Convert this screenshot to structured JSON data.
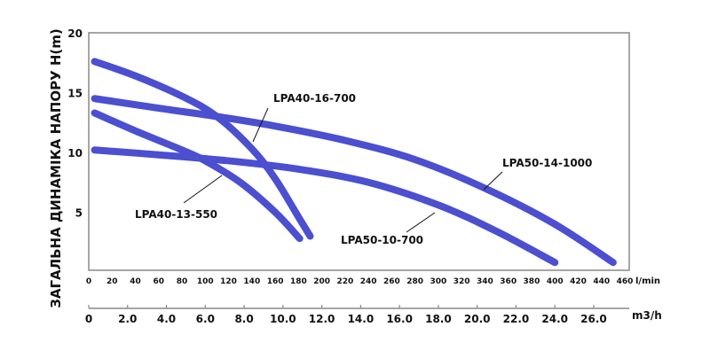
{
  "chart_data": {
    "type": "line",
    "ylabel": "ЗАГАЛЬНА ДИНАМІКА НАПОРУ H(m)",
    "xlabel": "l/min",
    "x2label": "m3/h",
    "xlim": [
      0,
      460
    ],
    "ylim": [
      0,
      20
    ],
    "x_ticks": [
      0,
      20,
      40,
      60,
      80,
      100,
      120,
      140,
      160,
      180,
      200,
      220,
      240,
      260,
      280,
      300,
      320,
      340,
      360,
      380,
      400,
      420,
      440,
      460
    ],
    "y_ticks": [
      5,
      10,
      15,
      20
    ],
    "x2_ticks": [
      "0",
      "2.0",
      "4.0",
      "6.0",
      "8.0",
      "10.0",
      "12.0",
      "14.0",
      "16.0",
      "18.0",
      "20.0",
      "22.0",
      "24.0",
      "26.0"
    ],
    "line_color": "#4b4fd0",
    "series": [
      {
        "name": "LPA40-16-700",
        "points": [
          [
            5,
            17.6
          ],
          [
            40,
            16.4
          ],
          [
            80,
            14.7
          ],
          [
            110,
            13
          ],
          [
            140,
            10.3
          ],
          [
            160,
            7.8
          ],
          [
            180,
            4.6
          ],
          [
            190,
            3.0
          ]
        ]
      },
      {
        "name": "LPA40-13-550",
        "points": [
          [
            5,
            13.3
          ],
          [
            40,
            11.8
          ],
          [
            80,
            10.2
          ],
          [
            100,
            9.3
          ],
          [
            130,
            7.5
          ],
          [
            160,
            5.0
          ],
          [
            181,
            2.8
          ]
        ]
      },
      {
        "name": "LPA50-14-1000",
        "points": [
          [
            5,
            14.5
          ],
          [
            60,
            13.7
          ],
          [
            110,
            13
          ],
          [
            160,
            12.2
          ],
          [
            220,
            11
          ],
          [
            280,
            9.4
          ],
          [
            340,
            7.0
          ],
          [
            400,
            4.0
          ],
          [
            450,
            0.8
          ]
        ]
      },
      {
        "name": "LPA50-10-700",
        "points": [
          [
            5,
            10.2
          ],
          [
            60,
            9.8
          ],
          [
            120,
            9.3
          ],
          [
            180,
            8.6
          ],
          [
            240,
            7.5
          ],
          [
            300,
            5.6
          ],
          [
            350,
            3.4
          ],
          [
            400,
            0.8
          ]
        ]
      }
    ]
  }
}
